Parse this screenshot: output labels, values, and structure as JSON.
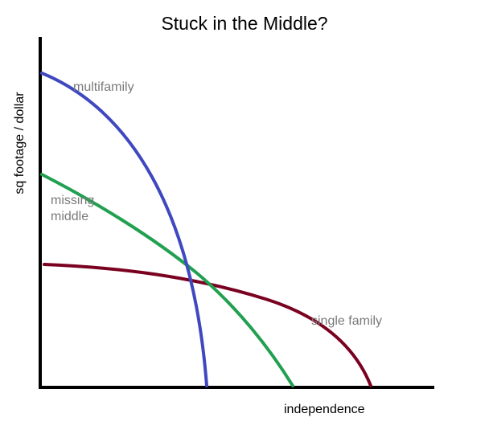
{
  "title": "Stuck in the Middle?",
  "axes": {
    "ylabel": "sq footage / dollar",
    "xlabel": "independence"
  },
  "curves": [
    {
      "key": "multifamily",
      "label_lines": [
        "multifamily"
      ],
      "color": "#4048c0"
    },
    {
      "key": "missing-middle",
      "label_lines": [
        "missing",
        "middle"
      ],
      "color": "#20a050"
    },
    {
      "key": "single-family",
      "label_lines": [
        "single family"
      ],
      "color": "#7a0020"
    }
  ],
  "colors": {
    "axis": "#000000",
    "label": "#7a7a7a"
  }
}
